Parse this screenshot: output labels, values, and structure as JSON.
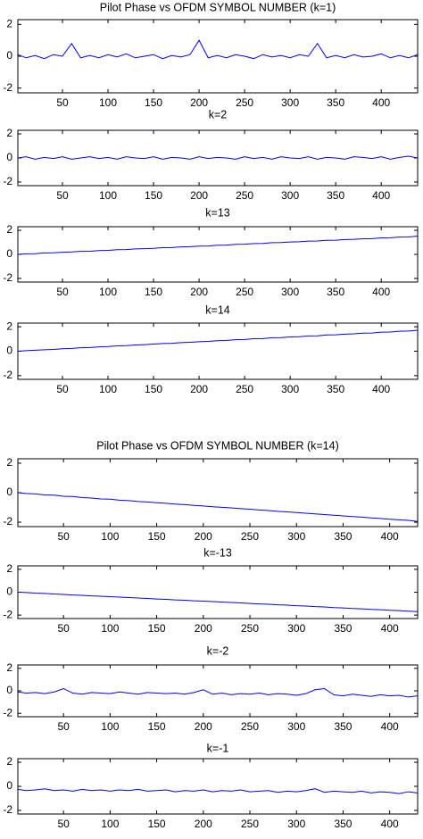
{
  "chart_data": [
    {
      "type": "line",
      "title": "Pilot Phase vs OFDM SYMBOL NUMBER (k=1)",
      "color": "#0000ff",
      "x": [
        1,
        10,
        20,
        30,
        40,
        50,
        60,
        70,
        80,
        90,
        100,
        110,
        120,
        130,
        140,
        150,
        160,
        170,
        180,
        190,
        200,
        210,
        220,
        230,
        240,
        250,
        260,
        270,
        280,
        290,
        300,
        310,
        320,
        330,
        340,
        350,
        360,
        370,
        380,
        390,
        400,
        410,
        420,
        430,
        440
      ],
      "values": [
        0.1,
        -0.1,
        0.05,
        -0.15,
        0.1,
        0.0,
        0.8,
        -0.1,
        0.05,
        -0.1,
        0.1,
        -0.05,
        0.15,
        -0.1,
        0.0,
        0.1,
        -0.15,
        0.05,
        -0.05,
        0.1,
        1.0,
        -0.1,
        0.05,
        -0.1,
        0.1,
        0.0,
        -0.15,
        0.1,
        -0.05,
        0.05,
        -0.1,
        0.1,
        0.0,
        0.8,
        -0.1,
        0.05,
        -0.1,
        0.1,
        -0.05,
        0.0,
        0.15,
        -0.1,
        0.05,
        -0.1,
        0.1
      ],
      "xlim": [
        1,
        440
      ],
      "ylim": [
        -2.3,
        2.3
      ],
      "xticks": [
        50,
        100,
        150,
        200,
        250,
        300,
        350,
        400
      ],
      "yticks": [
        -2,
        0,
        2
      ]
    },
    {
      "type": "line",
      "title": "k=2",
      "color": "#0000ff",
      "x": [
        1,
        10,
        20,
        30,
        40,
        50,
        60,
        70,
        80,
        90,
        100,
        110,
        120,
        130,
        140,
        150,
        160,
        170,
        180,
        190,
        200,
        210,
        220,
        230,
        240,
        250,
        260,
        270,
        280,
        290,
        300,
        310,
        320,
        330,
        340,
        350,
        360,
        370,
        380,
        390,
        400,
        410,
        420,
        430,
        440
      ],
      "values": [
        0.0,
        0.1,
        -0.1,
        0.05,
        -0.05,
        0.1,
        -0.1,
        0.0,
        0.1,
        -0.05,
        0.05,
        -0.1,
        0.1,
        0.0,
        -0.05,
        0.1,
        -0.1,
        0.05,
        0.0,
        -0.1,
        0.1,
        -0.05,
        0.05,
        0.0,
        -0.1,
        0.1,
        -0.05,
        0.05,
        -0.1,
        0.1,
        0.0,
        -0.05,
        0.1,
        -0.1,
        0.05,
        0.0,
        -0.1,
        0.1,
        0.05,
        -0.05,
        0.1,
        -0.1,
        0.05,
        0.15,
        0.0
      ],
      "xlim": [
        1,
        440
      ],
      "ylim": [
        -2.3,
        2.3
      ],
      "xticks": [
        50,
        100,
        150,
        200,
        250,
        300,
        350,
        400
      ],
      "yticks": [
        -2,
        0,
        2
      ]
    },
    {
      "type": "line",
      "title": "k=13",
      "color": "#0000ff",
      "x": [
        1,
        10,
        20,
        30,
        40,
        50,
        60,
        70,
        80,
        90,
        100,
        110,
        120,
        130,
        140,
        150,
        160,
        170,
        180,
        190,
        200,
        210,
        220,
        230,
        240,
        250,
        260,
        270,
        280,
        290,
        300,
        310,
        320,
        330,
        340,
        350,
        360,
        370,
        380,
        390,
        400,
        410,
        420,
        430,
        440
      ],
      "values": [
        0.0,
        0.05,
        0.06,
        0.12,
        0.13,
        0.18,
        0.2,
        0.25,
        0.26,
        0.32,
        0.33,
        0.39,
        0.4,
        0.45,
        0.47,
        0.5,
        0.56,
        0.57,
        0.62,
        0.64,
        0.69,
        0.7,
        0.76,
        0.77,
        0.83,
        0.84,
        0.9,
        0.91,
        0.97,
        0.98,
        1.03,
        1.05,
        1.1,
        1.11,
        1.17,
        1.18,
        1.23,
        1.25,
        1.3,
        1.31,
        1.37,
        1.38,
        1.44,
        1.45,
        1.52
      ],
      "xlim": [
        1,
        440
      ],
      "ylim": [
        -2.3,
        2.3
      ],
      "xticks": [
        50,
        100,
        150,
        200,
        250,
        300,
        350,
        400
      ],
      "yticks": [
        -2,
        0,
        2
      ]
    },
    {
      "type": "line",
      "title": "k=14",
      "color": "#0000ff",
      "x": [
        1,
        10,
        20,
        30,
        40,
        50,
        60,
        70,
        80,
        90,
        100,
        110,
        120,
        130,
        140,
        150,
        160,
        170,
        180,
        190,
        200,
        210,
        220,
        230,
        240,
        250,
        260,
        270,
        280,
        290,
        300,
        310,
        320,
        330,
        340,
        350,
        360,
        370,
        380,
        390,
        400,
        410,
        420,
        430,
        440
      ],
      "values": [
        0.0,
        0.05,
        0.08,
        0.12,
        0.15,
        0.2,
        0.23,
        0.28,
        0.3,
        0.36,
        0.38,
        0.44,
        0.46,
        0.51,
        0.54,
        0.58,
        0.63,
        0.65,
        0.7,
        0.73,
        0.78,
        0.8,
        0.86,
        0.88,
        0.94,
        0.96,
        1.02,
        1.03,
        1.1,
        1.11,
        1.17,
        1.19,
        1.25,
        1.26,
        1.33,
        1.34,
        1.4,
        1.42,
        1.48,
        1.49,
        1.56,
        1.57,
        1.63,
        1.65,
        1.72
      ],
      "xlim": [
        1,
        440
      ],
      "ylim": [
        -2.3,
        2.3
      ],
      "xticks": [
        50,
        100,
        150,
        200,
        250,
        300,
        350,
        400
      ],
      "yticks": [
        -2,
        0,
        2
      ]
    },
    {
      "type": "line",
      "title": "Pilot Phase vs OFDM SYMBOL NUMBER (k=14)",
      "color": "#0000ff",
      "x": [
        1,
        10,
        20,
        30,
        40,
        50,
        60,
        70,
        80,
        90,
        100,
        110,
        120,
        130,
        140,
        150,
        160,
        170,
        180,
        190,
        200,
        210,
        220,
        230,
        240,
        250,
        260,
        270,
        280,
        290,
        300,
        310,
        320,
        330,
        340,
        350,
        360,
        370,
        380,
        390,
        400,
        410,
        420,
        430
      ],
      "values": [
        0.0,
        -0.05,
        -0.08,
        -0.15,
        -0.17,
        -0.24,
        -0.26,
        -0.33,
        -0.36,
        -0.42,
        -0.44,
        -0.51,
        -0.54,
        -0.6,
        -0.63,
        -0.68,
        -0.72,
        -0.77,
        -0.81,
        -0.86,
        -0.9,
        -0.95,
        -0.99,
        -1.03,
        -1.08,
        -1.12,
        -1.17,
        -1.21,
        -1.26,
        -1.3,
        -1.35,
        -1.39,
        -1.44,
        -1.48,
        -1.53,
        -1.57,
        -1.62,
        -1.66,
        -1.71,
        -1.75,
        -1.8,
        -1.84,
        -1.88,
        -1.95
      ],
      "xlim": [
        1,
        430
      ],
      "ylim": [
        -2.3,
        2.3
      ],
      "xticks": [
        50,
        100,
        150,
        200,
        250,
        300,
        350,
        400
      ],
      "yticks": [
        -2,
        0,
        2
      ]
    },
    {
      "type": "line",
      "title": "k=-13",
      "color": "#0000ff",
      "x": [
        1,
        10,
        20,
        30,
        40,
        50,
        60,
        70,
        80,
        90,
        100,
        110,
        120,
        130,
        140,
        150,
        160,
        170,
        180,
        190,
        200,
        210,
        220,
        230,
        240,
        250,
        260,
        270,
        280,
        290,
        300,
        310,
        320,
        330,
        340,
        350,
        360,
        370,
        380,
        390,
        400,
        410,
        420,
        430
      ],
      "values": [
        0.0,
        -0.03,
        -0.08,
        -0.11,
        -0.16,
        -0.19,
        -0.24,
        -0.27,
        -0.32,
        -0.35,
        -0.39,
        -0.43,
        -0.47,
        -0.51,
        -0.55,
        -0.59,
        -0.62,
        -0.67,
        -0.7,
        -0.75,
        -0.78,
        -0.82,
        -0.86,
        -0.9,
        -0.94,
        -0.98,
        -1.02,
        -1.05,
        -1.1,
        -1.13,
        -1.18,
        -1.21,
        -1.26,
        -1.29,
        -1.34,
        -1.37,
        -1.42,
        -1.45,
        -1.5,
        -1.53,
        -1.58,
        -1.61,
        -1.66,
        -1.7
      ],
      "xlim": [
        1,
        430
      ],
      "ylim": [
        -2.3,
        2.3
      ],
      "xticks": [
        50,
        100,
        150,
        200,
        250,
        300,
        350,
        400
      ],
      "yticks": [
        -2,
        0,
        2
      ]
    },
    {
      "type": "line",
      "title": "k=-2",
      "color": "#0000ff",
      "x": [
        1,
        10,
        20,
        30,
        40,
        50,
        60,
        70,
        80,
        90,
        100,
        110,
        120,
        130,
        140,
        150,
        160,
        170,
        180,
        190,
        200,
        210,
        220,
        230,
        240,
        250,
        260,
        270,
        280,
        290,
        300,
        310,
        320,
        330,
        340,
        350,
        360,
        370,
        380,
        390,
        400,
        410,
        420,
        430
      ],
      "values": [
        -0.1,
        -0.2,
        -0.15,
        -0.25,
        -0.1,
        0.2,
        -0.2,
        -0.3,
        -0.15,
        -0.2,
        -0.25,
        -0.1,
        -0.2,
        -0.3,
        -0.15,
        -0.2,
        -0.25,
        -0.2,
        -0.3,
        -0.15,
        0.1,
        -0.3,
        -0.2,
        -0.35,
        -0.25,
        -0.3,
        -0.2,
        -0.35,
        -0.25,
        -0.3,
        -0.4,
        -0.25,
        0.1,
        0.2,
        -0.35,
        -0.45,
        -0.3,
        -0.4,
        -0.5,
        -0.35,
        -0.45,
        -0.4,
        -0.55,
        -0.45
      ],
      "xlim": [
        1,
        430
      ],
      "ylim": [
        -2.3,
        2.3
      ],
      "xticks": [
        50,
        100,
        150,
        200,
        250,
        300,
        350,
        400
      ],
      "yticks": [
        -2,
        0,
        2
      ]
    },
    {
      "type": "line",
      "title": "k=-1",
      "color": "#0000ff",
      "x": [
        1,
        10,
        20,
        30,
        40,
        50,
        60,
        70,
        80,
        90,
        100,
        110,
        120,
        130,
        140,
        150,
        160,
        170,
        180,
        190,
        200,
        210,
        220,
        230,
        240,
        250,
        260,
        270,
        280,
        290,
        300,
        310,
        320,
        330,
        340,
        350,
        360,
        370,
        380,
        390,
        400,
        410,
        420,
        430
      ],
      "values": [
        -0.25,
        -0.35,
        -0.3,
        -0.2,
        -0.35,
        -0.3,
        -0.4,
        -0.25,
        -0.35,
        -0.3,
        -0.4,
        -0.3,
        -0.35,
        -0.25,
        -0.4,
        -0.35,
        -0.3,
        -0.45,
        -0.35,
        -0.4,
        -0.3,
        -0.45,
        -0.35,
        -0.4,
        -0.3,
        -0.45,
        -0.4,
        -0.35,
        -0.5,
        -0.4,
        -0.45,
        -0.35,
        -0.2,
        -0.5,
        -0.4,
        -0.45,
        -0.5,
        -0.4,
        -0.55,
        -0.45,
        -0.5,
        -0.6,
        -0.45,
        -0.55
      ],
      "xlim": [
        1,
        430
      ],
      "ylim": [
        -2.3,
        2.3
      ],
      "xticks": [
        50,
        100,
        150,
        200,
        250,
        300,
        350,
        400
      ],
      "yticks": [
        -2,
        0,
        2
      ]
    }
  ]
}
